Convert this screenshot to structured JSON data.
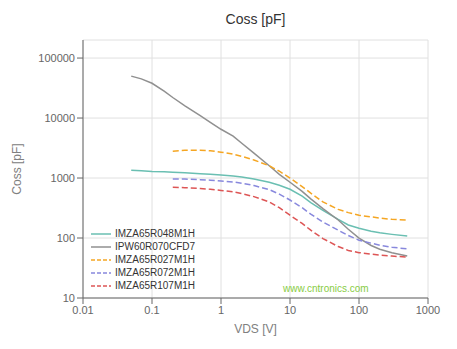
{
  "chart_data": {
    "type": "line",
    "title": "Coss [pF]",
    "x_label": "VDS [V]",
    "y_label": "Coss [pF]",
    "log": true,
    "grid": true,
    "legend": "lower left",
    "xlim": [
      0.01,
      1000
    ],
    "ylim": [
      10,
      200000
    ],
    "xticks": [
      0.01,
      0.1,
      1,
      10,
      100,
      1000
    ],
    "yticks": [
      10,
      100,
      1000,
      10000,
      100000
    ],
    "annotations": [
      {
        "text": "www.cntronics.com",
        "color": "#88cc44"
      }
    ],
    "series": [
      {
        "name": "IMZA65R048M1H",
        "color": "#6abfb2",
        "line_style": "solid",
        "x": [
          0.05,
          0.07,
          0.1,
          0.15,
          0.2,
          0.3,
          0.5,
          0.7,
          1,
          1.5,
          2,
          3,
          5,
          7,
          10,
          15,
          20,
          30,
          50,
          70,
          100,
          150,
          200,
          300,
          500
        ],
        "values": [
          1350,
          1320,
          1290,
          1270,
          1250,
          1220,
          1180,
          1160,
          1120,
          1080,
          1040,
          960,
          850,
          760,
          650,
          500,
          390,
          290,
          205,
          165,
          145,
          130,
          122,
          115,
          108
        ]
      },
      {
        "name": "IPW60R070CFD7",
        "color": "#909090",
        "line_style": "solid",
        "x": [
          0.05,
          0.07,
          0.1,
          0.15,
          0.2,
          0.3,
          0.5,
          0.7,
          1,
          1.5,
          2,
          3,
          5,
          7,
          10,
          15,
          20,
          30,
          50,
          70,
          100,
          150,
          200,
          300,
          500
        ],
        "values": [
          50000,
          45000,
          38000,
          28000,
          22000,
          16000,
          11000,
          8500,
          6500,
          5000,
          3800,
          2600,
          1600,
          1150,
          850,
          600,
          450,
          310,
          200,
          140,
          100,
          75,
          65,
          57,
          50
        ]
      },
      {
        "name": "IMZA65R027M1H",
        "color": "#f5a623",
        "line_style": "dashed",
        "x": [
          0.2,
          0.3,
          0.5,
          0.7,
          1,
          1.5,
          2,
          3,
          5,
          7,
          10,
          15,
          20,
          30,
          50,
          70,
          100,
          150,
          200,
          300,
          500
        ],
        "values": [
          2800,
          2900,
          2900,
          2850,
          2700,
          2500,
          2300,
          2000,
          1600,
          1300,
          1000,
          720,
          560,
          400,
          300,
          265,
          240,
          225,
          215,
          205,
          200
        ]
      },
      {
        "name": "IMZA65R072M1H",
        "color": "#8888dd",
        "line_style": "dashed",
        "x": [
          0.2,
          0.3,
          0.5,
          0.7,
          1,
          1.5,
          2,
          3,
          5,
          7,
          10,
          15,
          20,
          30,
          50,
          70,
          100,
          150,
          200,
          300,
          500
        ],
        "values": [
          960,
          960,
          940,
          920,
          890,
          860,
          820,
          750,
          640,
          540,
          430,
          320,
          250,
          185,
          135,
          110,
          92,
          82,
          76,
          70,
          66
        ]
      },
      {
        "name": "IMZA65R107M1H",
        "color": "#dd5555",
        "line_style": "dashed",
        "x": [
          0.2,
          0.3,
          0.5,
          0.7,
          1,
          1.5,
          2,
          3,
          5,
          7,
          10,
          15,
          20,
          30,
          50,
          70,
          100,
          150,
          200,
          300,
          500
        ],
        "values": [
          700,
          690,
          670,
          650,
          620,
          590,
          550,
          490,
          400,
          320,
          240,
          175,
          135,
          98,
          72,
          62,
          57,
          54,
          52,
          50,
          48
        ]
      }
    ]
  }
}
